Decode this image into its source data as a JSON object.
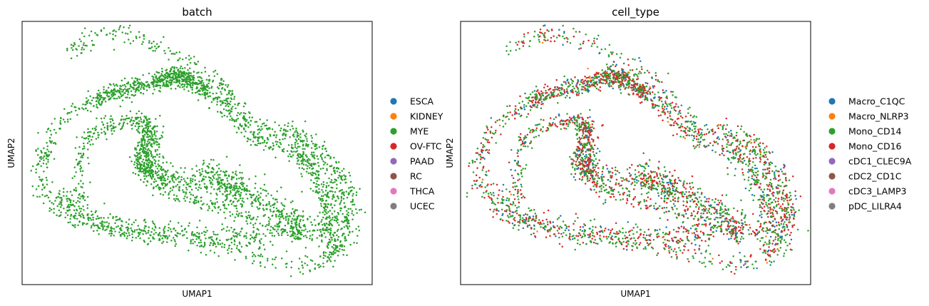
{
  "colors": {
    "tab_blue": "#1f77b4",
    "tab_orange": "#ff7f0e",
    "tab_green": "#2ca02c",
    "tab_red": "#d62728",
    "tab_purple": "#9467bd",
    "tab_brown": "#8c564b",
    "tab_pink": "#e377c2",
    "tab_gray": "#7f7f7f"
  },
  "chart_data": [
    {
      "type": "scatter",
      "title": "batch",
      "xlabel": "UMAP1",
      "ylabel": "UMAP2",
      "ticks": "none",
      "grid": false,
      "legend_position": "right-outside",
      "legend": [
        {
          "label": "ESCA",
          "color": "#1f77b4"
        },
        {
          "label": "KIDNEY",
          "color": "#ff7f0e"
        },
        {
          "label": "MYE",
          "color": "#2ca02c"
        },
        {
          "label": "OV-FTC",
          "color": "#d62728"
        },
        {
          "label": "PAAD",
          "color": "#9467bd"
        },
        {
          "label": "RC",
          "color": "#8c564b"
        },
        {
          "label": "THCA",
          "color": "#e377c2"
        },
        {
          "label": "UCEC",
          "color": "#7f7f7f"
        }
      ],
      "point_colors": [
        "#2ca02c"
      ],
      "point_weights": [
        1
      ]
    },
    {
      "type": "scatter",
      "title": "cell_type",
      "xlabel": "UMAP1",
      "ylabel": "UMAP2",
      "ticks": "none",
      "grid": false,
      "legend_position": "right-outside",
      "legend": [
        {
          "label": "Macro_C1QC",
          "color": "#1f77b4"
        },
        {
          "label": "Macro_NLRP3",
          "color": "#ff7f0e"
        },
        {
          "label": "Mono_CD14",
          "color": "#2ca02c"
        },
        {
          "label": "Mono_CD16",
          "color": "#d62728"
        },
        {
          "label": "cDC1_CLEC9A",
          "color": "#9467bd"
        },
        {
          "label": "cDC2_CD1C",
          "color": "#8c564b"
        },
        {
          "label": "cDC3_LAMP3",
          "color": "#e377c2"
        },
        {
          "label": "pDC_LILRA4",
          "color": "#7f7f7f"
        }
      ],
      "point_colors": [
        "#2ca02c",
        "#d62728",
        "#1f77b4",
        "#ff7f0e"
      ],
      "point_weights": [
        0.46,
        0.4,
        0.13,
        0.01
      ]
    }
  ]
}
